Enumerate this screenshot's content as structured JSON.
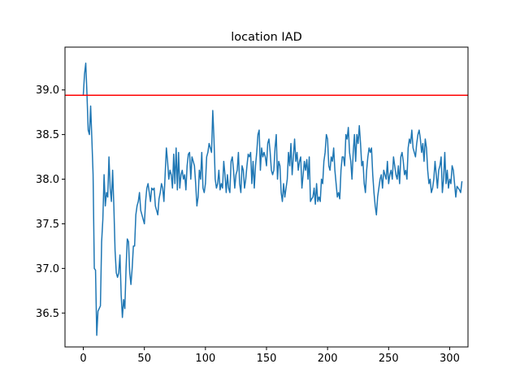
{
  "chart_data": {
    "type": "line",
    "title": "location IAD",
    "xlabel": "",
    "ylabel": "",
    "xlim": [
      -15,
      315
    ],
    "ylim": [
      36.12,
      39.48
    ],
    "x_ticks": [
      0,
      50,
      100,
      150,
      200,
      250,
      300
    ],
    "y_ticks": [
      36.5,
      37.0,
      37.5,
      38.0,
      38.5,
      39.0
    ],
    "grid": false,
    "legend": "none",
    "series": [
      {
        "color": "#1f77b4",
        "x_start": 0,
        "x_step": 1,
        "values": [
          38.95,
          39.18,
          39.3,
          38.95,
          38.55,
          38.5,
          38.82,
          38.45,
          38.05,
          37.0,
          36.98,
          36.25,
          36.52,
          36.55,
          36.58,
          37.3,
          37.55,
          38.05,
          37.7,
          37.85,
          37.8,
          38.25,
          37.9,
          37.75,
          38.1,
          37.7,
          37.2,
          36.95,
          36.9,
          36.95,
          37.15,
          36.7,
          36.45,
          36.65,
          36.55,
          37.0,
          37.33,
          37.3,
          36.95,
          36.82,
          37.0,
          37.25,
          37.25,
          37.6,
          37.7,
          37.75,
          37.85,
          37.65,
          37.6,
          37.55,
          37.5,
          37.75,
          37.9,
          37.95,
          37.85,
          37.75,
          37.9,
          37.88,
          37.9,
          37.7,
          37.65,
          37.6,
          37.78,
          37.85,
          37.95,
          37.9,
          37.75,
          38.05,
          38.35,
          38.2,
          38.0,
          38.1,
          38.05,
          37.9,
          38.28,
          37.95,
          38.35,
          37.88,
          38.3,
          37.9,
          38.05,
          38.1,
          38.0,
          38.05,
          37.88,
          38.15,
          38.28,
          38.3,
          38.0,
          38.25,
          38.2,
          38.15,
          37.95,
          37.7,
          37.8,
          38.1,
          38.0,
          38.3,
          37.9,
          37.85,
          37.95,
          38.25,
          38.3,
          38.4,
          38.35,
          38.3,
          38.77,
          38.45,
          38.0,
          37.9,
          37.95,
          38.1,
          37.88,
          37.95,
          37.9,
          38.2,
          38.05,
          37.85,
          38.05,
          37.9,
          37.85,
          38.2,
          38.25,
          38.1,
          37.9,
          38.05,
          38.1,
          38.3,
          37.95,
          37.85,
          38.15,
          38.1,
          37.9,
          38.0,
          38.15,
          38.28,
          38.25,
          38.3,
          37.95,
          38.2,
          37.9,
          38.15,
          38.3,
          38.5,
          38.55,
          38.1,
          38.35,
          38.25,
          38.3,
          38.25,
          38.15,
          38.4,
          38.45,
          38.3,
          38.1,
          38.05,
          38.1,
          38.35,
          38.5,
          38.0,
          38.2,
          38.15,
          37.85,
          37.75,
          37.95,
          37.8,
          37.9,
          38.0,
          38.3,
          38.15,
          38.4,
          38.05,
          38.25,
          38.45,
          38.2,
          38.3,
          38.1,
          38.2,
          38.25,
          37.9,
          38.05,
          38.2,
          38.1,
          38.22,
          38.0,
          38.25,
          37.75,
          37.78,
          37.8,
          37.9,
          37.72,
          37.95,
          37.75,
          37.8,
          37.75,
          38.0,
          37.95,
          38.2,
          38.3,
          38.5,
          38.45,
          38.15,
          38.1,
          38.25,
          38.2,
          38.35,
          38.1,
          37.95,
          37.8,
          37.85,
          37.78,
          38.1,
          38.25,
          38.25,
          38.15,
          38.5,
          38.45,
          38.58,
          38.3,
          38.2,
          38.0,
          38.3,
          38.5,
          38.2,
          38.5,
          38.4,
          38.6,
          38.4,
          38.15,
          38.2,
          37.95,
          37.85,
          38.1,
          38.25,
          38.35,
          38.3,
          38.35,
          38.05,
          37.85,
          37.7,
          37.6,
          37.8,
          37.9,
          38.0,
          38.05,
          37.9,
          38.1,
          38.05,
          38.0,
          38.2,
          37.95,
          38.05,
          38.1,
          38.0,
          38.25,
          38.15,
          38.05,
          38.0,
          38.15,
          37.95,
          38.25,
          38.3,
          38.2,
          38.05,
          38.1,
          38.0,
          38.35,
          38.45,
          38.4,
          38.55,
          38.35,
          38.3,
          38.25,
          38.4,
          38.5,
          38.55,
          38.45,
          38.3,
          38.4,
          38.2,
          38.45,
          38.35,
          38.1,
          37.95,
          38.0,
          37.85,
          37.9,
          38.0,
          38.2,
          38.05,
          37.9,
          38.1,
          38.15,
          38.25,
          37.85,
          38.0,
          38.3,
          37.95,
          38.1,
          37.9,
          38.0,
          37.95,
          38.15,
          38.1,
          37.95,
          37.8,
          37.92,
          37.9,
          37.88,
          37.85,
          37.97
        ]
      }
    ],
    "reference_line": {
      "value": 38.94,
      "color": "#ff0000"
    }
  }
}
